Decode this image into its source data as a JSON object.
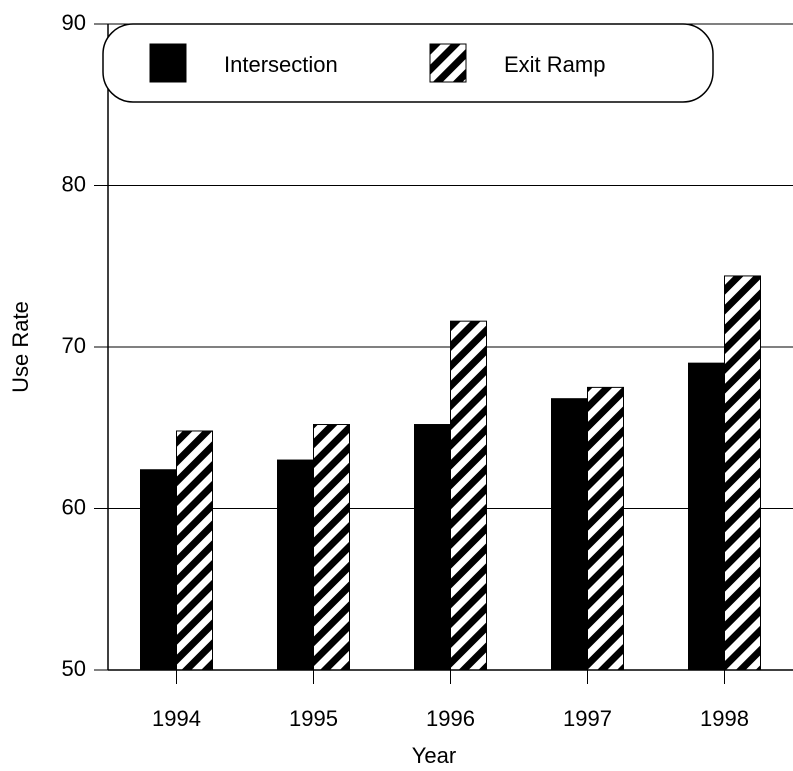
{
  "chart_data": {
    "type": "bar",
    "x_label": "Year",
    "y_label": "Use Rate",
    "categories": [
      "1994",
      "1995",
      "1996",
      "1997",
      "1998"
    ],
    "series": [
      {
        "name": "Intersection",
        "color": "#000000",
        "pattern": "solid",
        "values": [
          62.4,
          63.0,
          65.2,
          66.8,
          69.0
        ]
      },
      {
        "name": "Exit Ramp",
        "color": "#000000",
        "pattern": "hatch",
        "values": [
          64.8,
          65.2,
          71.6,
          67.5,
          74.4
        ]
      }
    ],
    "ylim": [
      50,
      90
    ],
    "yticks": [
      50,
      60,
      70,
      80,
      90
    ],
    "grid": true,
    "legend": "top"
  }
}
